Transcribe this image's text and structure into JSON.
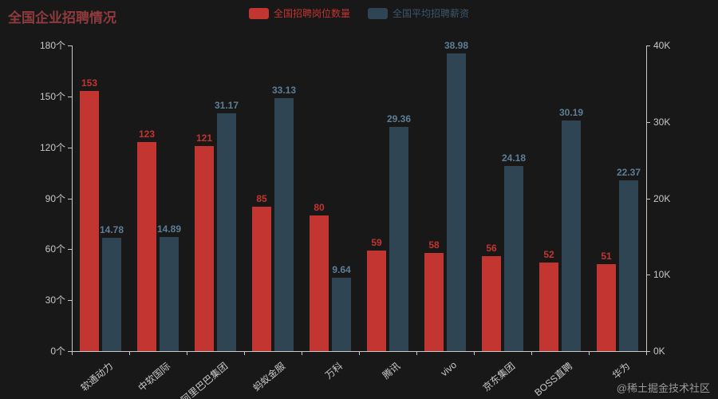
{
  "title": "全国企业招聘情况",
  "watermark": "@稀土掘金技术社区",
  "colors": {
    "background": "#181818",
    "title": "#8e3b3e",
    "axis_line": "#c8c8c8",
    "axis_text": "#c8c8c8",
    "red": "#c23531",
    "slate": "#2f4554",
    "watermark": "#999999"
  },
  "legend": [
    {
      "label": "全国招聘岗位数量",
      "color": "#c23531",
      "text_color": "#c23531"
    },
    {
      "label": "全国平均招聘薪资",
      "color": "#2f4554",
      "text_color": "#3e566b"
    }
  ],
  "chart_data": {
    "type": "bar",
    "title": "全国企业招聘情况",
    "categories": [
      "软通动力",
      "中软国际",
      "阿里巴巴集团",
      "蚂蚁金服",
      "万科",
      "腾讯",
      "vivo",
      "京东集团",
      "BOSS直聘",
      "华为"
    ],
    "series": [
      {
        "name": "全国招聘岗位数量",
        "axis": "left",
        "color": "#c23531",
        "label_color": "#c23531",
        "values": [
          153,
          123,
          121,
          85,
          80,
          59,
          58,
          56,
          52,
          51
        ]
      },
      {
        "name": "全国平均招聘薪资",
        "axis": "right",
        "color": "#2f4554",
        "label_color": "#5d7e96",
        "values": [
          14.78,
          14.89,
          31.17,
          33.13,
          9.64,
          29.36,
          38.98,
          24.18,
          30.19,
          22.37
        ]
      }
    ],
    "left_axis": {
      "label_suffix": "个",
      "ticks": [
        "0个",
        "30个",
        "60个",
        "90个",
        "120个",
        "150个",
        "180个"
      ],
      "min": 0,
      "max": 180
    },
    "right_axis": {
      "label_suffix": "K",
      "ticks": [
        "0K",
        "10K",
        "20K",
        "30K",
        "40K"
      ],
      "min": 0,
      "max": 40
    },
    "grid": false,
    "legend_position": "top-center",
    "xlabel": "",
    "ylabel": ""
  }
}
